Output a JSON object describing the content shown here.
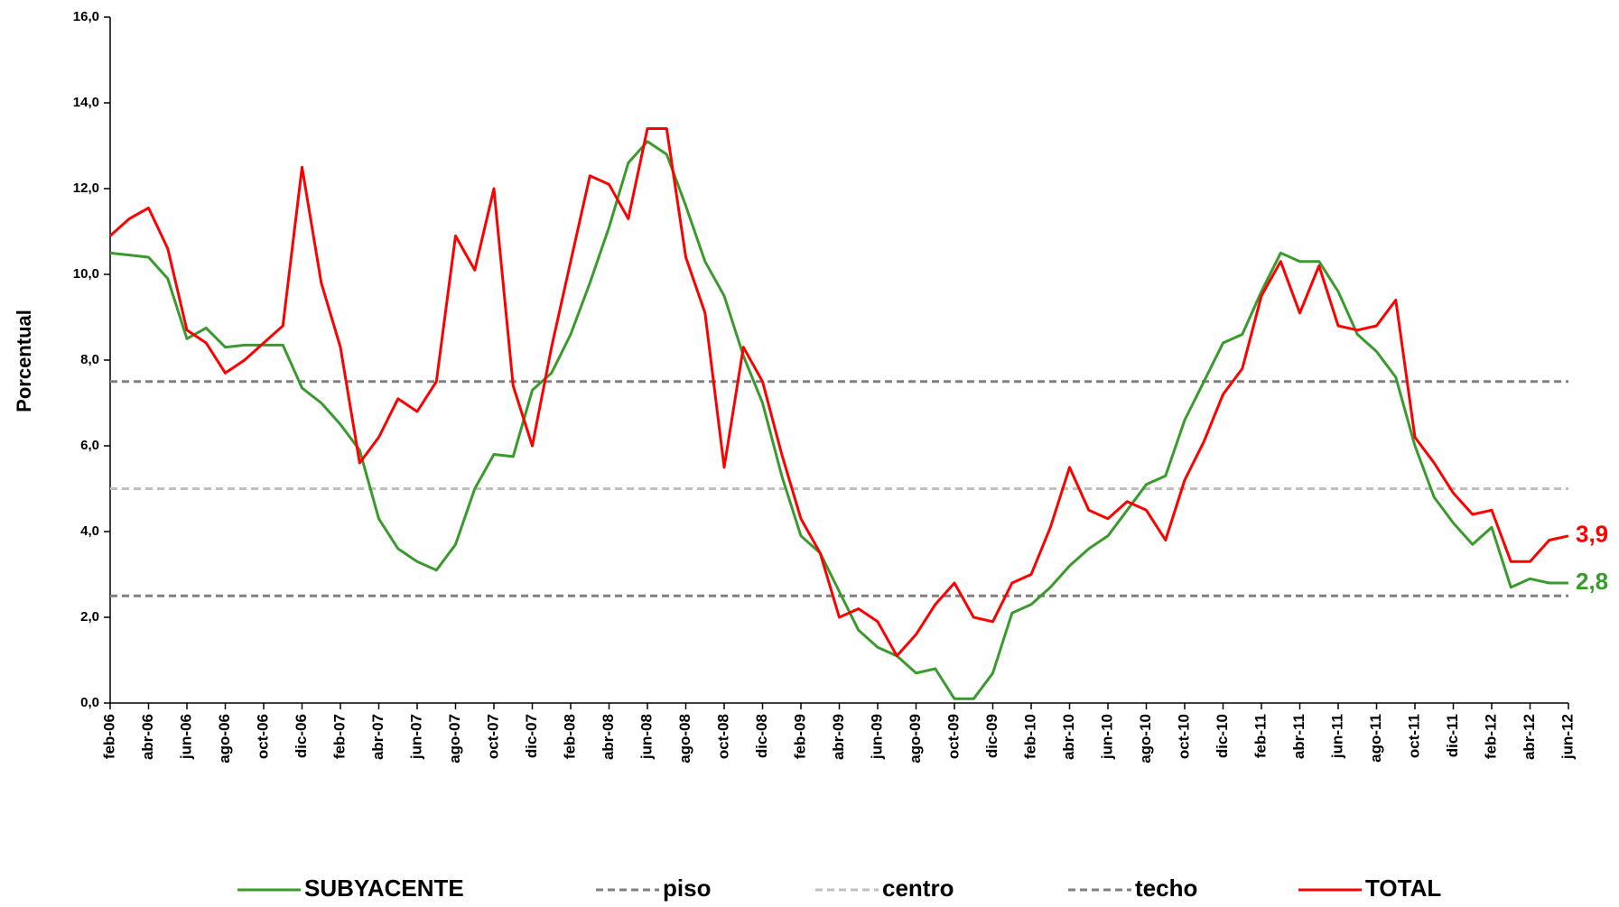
{
  "chart_data": {
    "type": "line",
    "y_label": "Porcentual",
    "categories": [
      "feb-06",
      null,
      "abr-06",
      null,
      "jun-06",
      null,
      "ago-06",
      null,
      "oct-06",
      null,
      "dic-06",
      null,
      "feb-07",
      null,
      "abr-07",
      null,
      "jun-07",
      null,
      "ago-07",
      null,
      "oct-07",
      null,
      "dic-07",
      null,
      "feb-08",
      null,
      "abr-08",
      null,
      "jun-08",
      null,
      "ago-08",
      null,
      "oct-08",
      null,
      "dic-08",
      null,
      "feb-09",
      null,
      "abr-09",
      null,
      "jun-09",
      null,
      "ago-09",
      null,
      "oct-09",
      null,
      "dic-09",
      null,
      "feb-10",
      null,
      "abr-10",
      null,
      "jun-10",
      null,
      "ago-10",
      null,
      "oct-10",
      null,
      "dic-10",
      null,
      "feb-11",
      null,
      "abr-11",
      null,
      "jun-11",
      null,
      "ago-11",
      null,
      "oct-11",
      null,
      "dic-11",
      null,
      "feb-12",
      null,
      "abr-12",
      null,
      "jun-12"
    ],
    "ylim": [
      0,
      16
    ],
    "yticks": [
      {
        "value": 0,
        "label": "0,0"
      },
      {
        "value": 2,
        "label": "2,0"
      },
      {
        "value": 4,
        "label": "4,0"
      },
      {
        "value": 6,
        "label": "6,0"
      },
      {
        "value": 8,
        "label": "8,0"
      },
      {
        "value": 10,
        "label": "10,0"
      },
      {
        "value": 12,
        "label": "12,0"
      },
      {
        "value": 14,
        "label": "14,0"
      },
      {
        "value": 16,
        "label": "16,0"
      }
    ],
    "series": [
      {
        "name": "SUBYACENTE",
        "color": "#3a9a2e",
        "values": [
          10.5,
          10.45,
          10.4,
          9.9,
          8.5,
          8.75,
          8.3,
          8.35,
          8.35,
          8.35,
          7.35,
          7.0,
          6.5,
          5.9,
          4.3,
          3.6,
          3.3,
          3.1,
          3.7,
          5.0,
          5.8,
          5.75,
          7.3,
          7.7,
          8.6,
          9.8,
          11.1,
          12.6,
          13.1,
          12.8,
          11.6,
          10.3,
          9.5,
          8.1,
          7.0,
          5.3,
          3.9,
          3.5,
          2.6,
          1.7,
          1.3,
          1.1,
          0.7,
          0.8,
          0.1,
          0.1,
          0.7,
          2.1,
          2.3,
          2.7,
          3.2,
          3.6,
          3.9,
          4.5,
          5.1,
          5.3,
          6.6,
          7.5,
          8.4,
          8.6,
          9.6,
          10.5,
          10.3,
          10.3,
          9.6,
          8.6,
          8.2,
          7.6,
          6.0,
          4.8,
          4.2,
          3.7,
          4.1,
          2.7,
          2.9,
          2.8,
          2.8
        ],
        "value_labels": [
          null,
          null,
          null,
          null,
          null,
          null,
          null,
          null,
          null,
          null,
          null,
          null,
          null,
          null,
          null,
          null,
          null,
          null,
          null,
          null,
          null,
          null,
          null,
          null,
          null,
          null,
          null,
          null,
          null,
          null,
          null,
          null,
          null,
          null,
          null,
          null,
          null,
          null,
          null,
          null,
          null,
          null,
          null,
          null,
          null,
          null,
          null,
          null,
          null,
          null,
          null,
          null,
          null,
          null,
          null,
          null,
          null,
          null,
          null,
          null,
          null,
          null,
          null,
          null,
          null,
          null,
          null,
          null,
          null,
          null,
          null,
          null,
          null,
          null,
          null,
          null,
          "2,8"
        ]
      },
      {
        "name": "piso",
        "color": "#808080",
        "dash": true,
        "value": 2.5
      },
      {
        "name": "centro",
        "color": "#c0c0c0",
        "dash": true,
        "value": 5
      },
      {
        "name": "techo",
        "color": "#808080",
        "dash": true,
        "value": 7.5
      },
      {
        "name": "TOTAL",
        "color": "#ff0000",
        "values": [
          10.9,
          11.3,
          11.55,
          10.6,
          8.7,
          8.4,
          7.7,
          8.0,
          8.4,
          8.8,
          12.5,
          9.8,
          8.3,
          5.6,
          6.2,
          7.1,
          6.8,
          7.5,
          10.9,
          10.1,
          12.0,
          7.4,
          6.0,
          8.3,
          10.3,
          12.3,
          12.1,
          11.3,
          13.4,
          13.4,
          10.4,
          9.1,
          5.5,
          8.3,
          7.5,
          5.8,
          4.3,
          3.5,
          2.0,
          2.2,
          1.9,
          1.1,
          1.6,
          2.3,
          2.8,
          2.0,
          1.9,
          2.8,
          3.0,
          4.1,
          5.5,
          4.5,
          4.3,
          4.7,
          4.5,
          3.8,
          5.2,
          6.1,
          7.2,
          7.8,
          9.5,
          10.3,
          9.1,
          10.2,
          8.8,
          8.7,
          8.8,
          9.4,
          6.2,
          5.6,
          4.9,
          4.4,
          4.5,
          3.3,
          3.3,
          3.8,
          3.9
        ],
        "value_labels": [
          null,
          null,
          null,
          null,
          null,
          null,
          null,
          null,
          null,
          null,
          null,
          null,
          null,
          null,
          null,
          null,
          null,
          null,
          null,
          null,
          null,
          null,
          null,
          null,
          null,
          null,
          null,
          null,
          null,
          null,
          null,
          null,
          null,
          null,
          null,
          null,
          null,
          null,
          null,
          null,
          null,
          null,
          null,
          null,
          null,
          null,
          null,
          null,
          null,
          null,
          null,
          null,
          null,
          null,
          null,
          null,
          null,
          null,
          null,
          null,
          null,
          null,
          null,
          null,
          null,
          null,
          null,
          null,
          null,
          null,
          null,
          null,
          null,
          null,
          null,
          null,
          "3,9"
        ]
      }
    ]
  }
}
